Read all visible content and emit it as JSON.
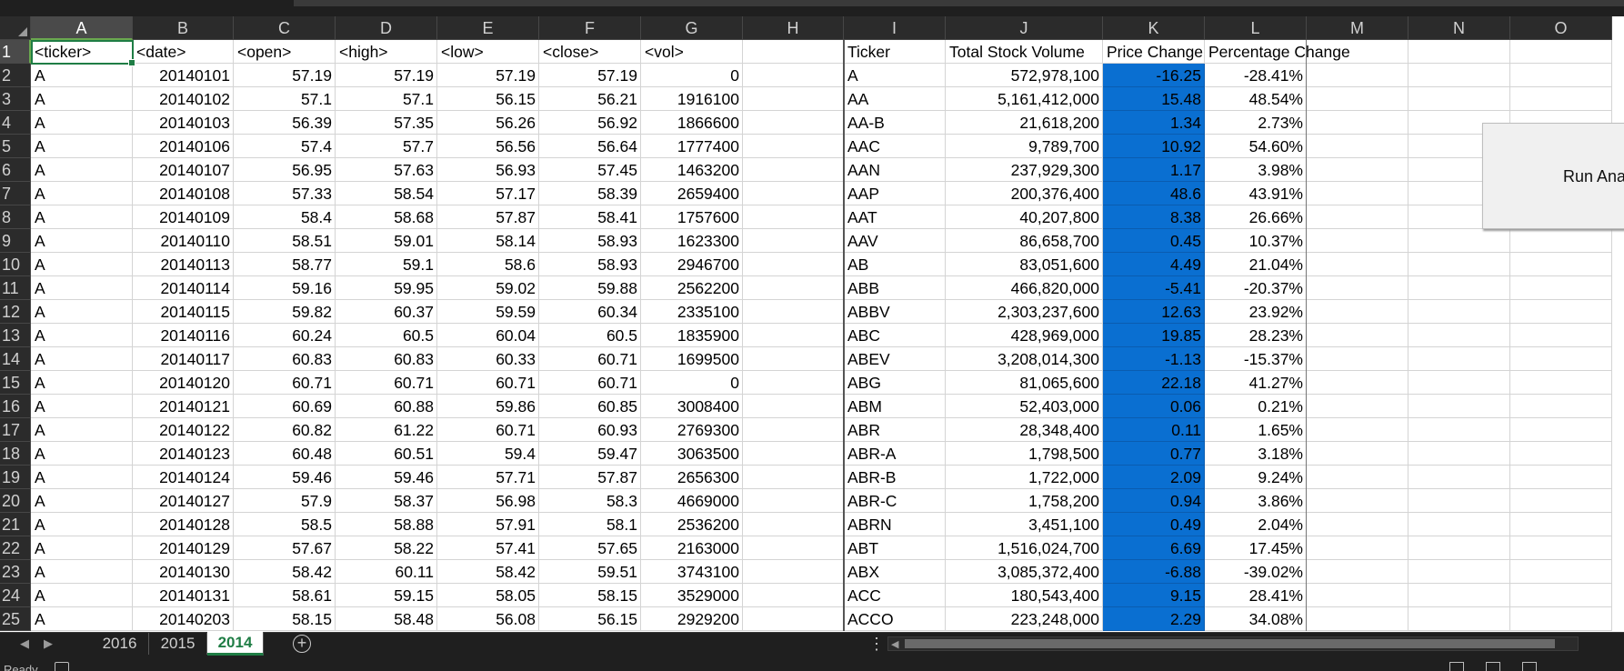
{
  "columns": [
    "A",
    "B",
    "C",
    "D",
    "E",
    "F",
    "G",
    "H",
    "I",
    "J",
    "K",
    "L",
    "M",
    "N",
    "O"
  ],
  "rows": [
    "1",
    "2",
    "3",
    "4",
    "5",
    "6",
    "7",
    "8",
    "9",
    "10",
    "11",
    "12",
    "13",
    "14",
    "15",
    "16",
    "17",
    "18",
    "19",
    "20",
    "21",
    "22",
    "23",
    "24",
    "25"
  ],
  "source_headers": [
    "<ticker>",
    "<date>",
    "<open>",
    "<high>",
    "<low>",
    "<close>",
    "<vol>"
  ],
  "source_data": [
    [
      "A",
      "20140101",
      "57.19",
      "57.19",
      "57.19",
      "57.19",
      "0"
    ],
    [
      "A",
      "20140102",
      "57.1",
      "57.1",
      "56.15",
      "56.21",
      "1916100"
    ],
    [
      "A",
      "20140103",
      "56.39",
      "57.35",
      "56.26",
      "56.92",
      "1866600"
    ],
    [
      "A",
      "20140106",
      "57.4",
      "57.7",
      "56.56",
      "56.64",
      "1777400"
    ],
    [
      "A",
      "20140107",
      "56.95",
      "57.63",
      "56.93",
      "57.45",
      "1463200"
    ],
    [
      "A",
      "20140108",
      "57.33",
      "58.54",
      "57.17",
      "58.39",
      "2659400"
    ],
    [
      "A",
      "20140109",
      "58.4",
      "58.68",
      "57.87",
      "58.41",
      "1757600"
    ],
    [
      "A",
      "20140110",
      "58.51",
      "59.01",
      "58.14",
      "58.93",
      "1623300"
    ],
    [
      "A",
      "20140113",
      "58.77",
      "59.1",
      "58.6",
      "58.93",
      "2946700"
    ],
    [
      "A",
      "20140114",
      "59.16",
      "59.95",
      "59.02",
      "59.88",
      "2562200"
    ],
    [
      "A",
      "20140115",
      "59.82",
      "60.37",
      "59.59",
      "60.34",
      "2335100"
    ],
    [
      "A",
      "20140116",
      "60.24",
      "60.5",
      "60.04",
      "60.5",
      "1835900"
    ],
    [
      "A",
      "20140117",
      "60.83",
      "60.83",
      "60.33",
      "60.71",
      "1699500"
    ],
    [
      "A",
      "20140120",
      "60.71",
      "60.71",
      "60.71",
      "60.71",
      "0"
    ],
    [
      "A",
      "20140121",
      "60.69",
      "60.88",
      "59.86",
      "60.85",
      "3008400"
    ],
    [
      "A",
      "20140122",
      "60.82",
      "61.22",
      "60.71",
      "60.93",
      "2769300"
    ],
    [
      "A",
      "20140123",
      "60.48",
      "60.51",
      "59.4",
      "59.47",
      "3063500"
    ],
    [
      "A",
      "20140124",
      "59.46",
      "59.46",
      "57.71",
      "57.87",
      "2656300"
    ],
    [
      "A",
      "20140127",
      "57.9",
      "58.37",
      "56.98",
      "58.3",
      "4669000"
    ],
    [
      "A",
      "20140128",
      "58.5",
      "58.88",
      "57.91",
      "58.1",
      "2536200"
    ],
    [
      "A",
      "20140129",
      "57.67",
      "58.22",
      "57.41",
      "57.65",
      "2163000"
    ],
    [
      "A",
      "20140130",
      "58.42",
      "60.11",
      "58.42",
      "59.51",
      "3743100"
    ],
    [
      "A",
      "20140131",
      "58.61",
      "59.15",
      "58.05",
      "58.15",
      "3529000"
    ],
    [
      "A",
      "20140203",
      "58.15",
      "58.48",
      "56.08",
      "56.15",
      "2929200"
    ]
  ],
  "summary_headers": [
    "Ticker",
    "Total Stock Volume",
    "Price Change",
    "Percentage Change"
  ],
  "summary_data": [
    [
      "A",
      "572,978,100",
      "-16.25",
      "-28.41%"
    ],
    [
      "AA",
      "5,161,412,000",
      "15.48",
      "48.54%"
    ],
    [
      "AA-B",
      "21,618,200",
      "1.34",
      "2.73%"
    ],
    [
      "AAC",
      "9,789,700",
      "10.92",
      "54.60%"
    ],
    [
      "AAN",
      "237,929,300",
      "1.17",
      "3.98%"
    ],
    [
      "AAP",
      "200,376,400",
      "48.6",
      "43.91%"
    ],
    [
      "AAT",
      "40,207,800",
      "8.38",
      "26.66%"
    ],
    [
      "AAV",
      "86,658,700",
      "0.45",
      "10.37%"
    ],
    [
      "AB",
      "83,051,600",
      "4.49",
      "21.04%"
    ],
    [
      "ABB",
      "466,820,000",
      "-5.41",
      "-20.37%"
    ],
    [
      "ABBV",
      "2,303,237,600",
      "12.63",
      "23.92%"
    ],
    [
      "ABC",
      "428,969,000",
      "19.85",
      "28.23%"
    ],
    [
      "ABEV",
      "3,208,014,300",
      "-1.13",
      "-15.37%"
    ],
    [
      "ABG",
      "81,065,600",
      "22.18",
      "41.27%"
    ],
    [
      "ABM",
      "52,403,000",
      "0.06",
      "0.21%"
    ],
    [
      "ABR",
      "28,348,400",
      "0.11",
      "1.65%"
    ],
    [
      "ABR-A",
      "1,798,500",
      "0.77",
      "3.18%"
    ],
    [
      "ABR-B",
      "1,722,000",
      "2.09",
      "9.24%"
    ],
    [
      "ABR-C",
      "1,758,200",
      "0.94",
      "3.86%"
    ],
    [
      "ABRN",
      "3,451,100",
      "0.49",
      "2.04%"
    ],
    [
      "ABT",
      "1,516,024,700",
      "6.69",
      "17.45%"
    ],
    [
      "ABX",
      "3,085,372,400",
      "-6.88",
      "-39.02%"
    ],
    [
      "ACC",
      "180,543,400",
      "9.15",
      "28.41%"
    ],
    [
      "ACCO",
      "223,248,000",
      "2.29",
      "34.08%"
    ]
  ],
  "run_button_label": "Run Ana",
  "sheet_tabs": [
    "2016",
    "2015",
    "2014"
  ],
  "active_sheet": "2014",
  "status_text": "Ready",
  "colors": {
    "accent": "#1f7d45",
    "highlight_fill": "#0a6fd1",
    "header_bg": "#2b2b2b"
  }
}
